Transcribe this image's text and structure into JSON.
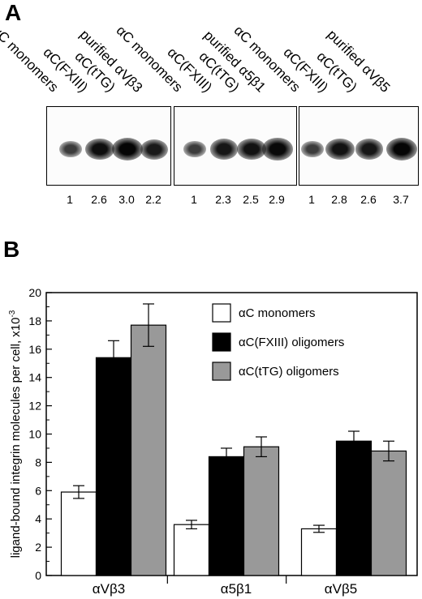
{
  "panel_a": {
    "letter": "A",
    "groups": [
      {
        "lanes": [
          {
            "label": "αC monomers",
            "value": "1",
            "intensity": 0.35
          },
          {
            "label": "αC(FXIII)",
            "value": "2.6",
            "intensity": 0.9
          },
          {
            "label": "αC(tTG)",
            "value": "3.0",
            "intensity": 1.0
          },
          {
            "label": "purified αVβ3",
            "value": "2.2",
            "intensity": 0.75
          }
        ]
      },
      {
        "lanes": [
          {
            "label": "αC monomers",
            "value": "1",
            "intensity": 0.35
          },
          {
            "label": "αC(FXIII)",
            "value": "2.3",
            "intensity": 0.8
          },
          {
            "label": "αC(tTG)",
            "value": "2.5",
            "intensity": 0.85
          },
          {
            "label": "purified α5β1",
            "value": "2.9",
            "intensity": 0.95
          }
        ]
      },
      {
        "lanes": [
          {
            "label": "αC monomers",
            "value": "1",
            "intensity": 0.35
          },
          {
            "label": "αC(FXIII)",
            "value": "2.8",
            "intensity": 0.85
          },
          {
            "label": "αC(tTG)",
            "value": "2.6",
            "intensity": 0.8
          },
          {
            "label": "purified αVβ5",
            "value": "3.7",
            "intensity": 1.0
          }
        ]
      }
    ]
  },
  "panel_b": {
    "letter": "B"
  },
  "chart_data": {
    "type": "bar",
    "title": "",
    "xlabel": "",
    "ylabel": "ligand-bound integrin molecules per cell, x10",
    "ylabel_exponent": "-3",
    "ylim": [
      0,
      20
    ],
    "yticks": [
      0,
      2,
      4,
      6,
      8,
      10,
      12,
      14,
      16,
      18,
      20
    ],
    "grid": false,
    "legend_position": "top-right",
    "categories": [
      "αVβ3",
      "α5β1",
      "αVβ5"
    ],
    "series": [
      {
        "name": "αC monomers",
        "values": [
          5.9,
          3.6,
          3.3
        ],
        "errors": [
          0.45,
          0.3,
          0.25
        ],
        "color": "#ffffff"
      },
      {
        "name": "αC(FXIII) oligomers",
        "values": [
          15.4,
          8.4,
          9.5
        ],
        "errors": [
          1.2,
          0.6,
          0.7
        ],
        "color": "#000000"
      },
      {
        "name": "αC(tTG) oligomers",
        "values": [
          17.7,
          9.1,
          8.8
        ],
        "errors": [
          1.5,
          0.7,
          0.7
        ],
        "color": "#999999"
      }
    ]
  }
}
